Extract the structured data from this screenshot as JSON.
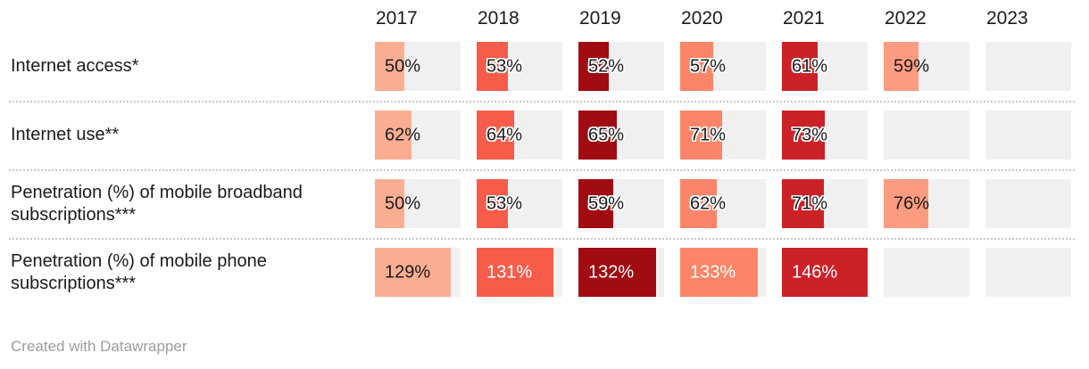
{
  "header": {
    "columns": [
      "2017",
      "2018",
      "2019",
      "2020",
      "2021",
      "2022",
      "2023"
    ]
  },
  "rows": [
    {
      "label": "Internet access*",
      "cells": [
        {
          "text": "50%",
          "value": 50,
          "fill_pct": 34.2,
          "color": "#FBAD92",
          "style": "dark"
        },
        {
          "text": "53%",
          "value": 53,
          "fill_pct": 36.3,
          "color": "#F75C4A",
          "style": "halo"
        },
        {
          "text": "52%",
          "value": 52,
          "fill_pct": 35.6,
          "color": "#A00C11",
          "style": "halo"
        },
        {
          "text": "57%",
          "value": 57,
          "fill_pct": 39.0,
          "color": "#FB8568",
          "style": "halo"
        },
        {
          "text": "61%",
          "value": 61,
          "fill_pct": 41.8,
          "color": "#CB2227",
          "style": "halo"
        },
        {
          "text": "59%",
          "value": 59,
          "fill_pct": 40.4,
          "color": "#FB9C80",
          "style": "dark"
        },
        {
          "text": "",
          "value": null,
          "fill_pct": 0,
          "color": null,
          "style": "none"
        }
      ]
    },
    {
      "label": "Internet use**",
      "cells": [
        {
          "text": "62%",
          "value": 62,
          "fill_pct": 42.5,
          "color": "#FBAD92",
          "style": "dark"
        },
        {
          "text": "64%",
          "value": 64,
          "fill_pct": 43.8,
          "color": "#F75C4A",
          "style": "halo"
        },
        {
          "text": "65%",
          "value": 65,
          "fill_pct": 44.5,
          "color": "#A00C11",
          "style": "halo"
        },
        {
          "text": "71%",
          "value": 71,
          "fill_pct": 48.6,
          "color": "#FB8568",
          "style": "halo"
        },
        {
          "text": "73%",
          "value": 73,
          "fill_pct": 50.0,
          "color": "#CB2227",
          "style": "halo"
        },
        {
          "text": "",
          "value": null,
          "fill_pct": 0,
          "color": null,
          "style": "none"
        },
        {
          "text": "",
          "value": null,
          "fill_pct": 0,
          "color": null,
          "style": "none"
        }
      ]
    },
    {
      "label": "Penetration (%) of mobile broadband subscriptions***",
      "cells": [
        {
          "text": "50%",
          "value": 50,
          "fill_pct": 34.2,
          "color": "#FBAD92",
          "style": "dark"
        },
        {
          "text": "53%",
          "value": 53,
          "fill_pct": 36.3,
          "color": "#F75C4A",
          "style": "halo"
        },
        {
          "text": "59%",
          "value": 59,
          "fill_pct": 40.4,
          "color": "#A00C11",
          "style": "halo"
        },
        {
          "text": "62%",
          "value": 62,
          "fill_pct": 42.5,
          "color": "#FB8568",
          "style": "halo"
        },
        {
          "text": "71%",
          "value": 71,
          "fill_pct": 48.6,
          "color": "#CB2227",
          "style": "halo"
        },
        {
          "text": "76%",
          "value": 76,
          "fill_pct": 52.1,
          "color": "#FB9C80",
          "style": "dark"
        },
        {
          "text": "",
          "value": null,
          "fill_pct": 0,
          "color": null,
          "style": "none"
        }
      ]
    },
    {
      "label": "Penetration (%) of mobile phone subscriptions***",
      "cells": [
        {
          "text": "129%",
          "value": 129,
          "fill_pct": 88.4,
          "color": "#FBAD92",
          "style": "dark"
        },
        {
          "text": "131%",
          "value": 131,
          "fill_pct": 89.7,
          "color": "#F75C4A",
          "style": "light"
        },
        {
          "text": "132%",
          "value": 132,
          "fill_pct": 90.4,
          "color": "#A00C11",
          "style": "light"
        },
        {
          "text": "133%",
          "value": 133,
          "fill_pct": 91.1,
          "color": "#FB8568",
          "style": "light"
        },
        {
          "text": "146%",
          "value": 146,
          "fill_pct": 100,
          "color": "#CB2227",
          "style": "light"
        },
        {
          "text": "",
          "value": null,
          "fill_pct": 0,
          "color": null,
          "style": "none"
        },
        {
          "text": "",
          "value": null,
          "fill_pct": 0,
          "color": null,
          "style": "none"
        }
      ]
    }
  ],
  "footer": {
    "credit": "Created with Datawrapper"
  },
  "colors": {
    "empty_cell": "#F0F0F0",
    "separator": "#C9C9C9",
    "text": "#1A1A1A",
    "muted_text": "#9C9C9C",
    "halo": "#FFFFFF",
    "col_2017": "#FBAD92",
    "col_2018": "#F75C4A",
    "col_2019": "#A00C11",
    "col_2020": "#FB8568",
    "col_2021": "#CB2227",
    "col_2022": "#FB9C80"
  },
  "chart_data": {
    "type": "table",
    "title": "",
    "columns": [
      "2017",
      "2018",
      "2019",
      "2020",
      "2021",
      "2022",
      "2023"
    ],
    "series": [
      {
        "name": "Internet access*",
        "values": [
          50,
          53,
          52,
          57,
          61,
          59,
          null
        ]
      },
      {
        "name": "Internet use**",
        "values": [
          62,
          64,
          65,
          71,
          73,
          null,
          null
        ]
      },
      {
        "name": "Penetration (%) of mobile broadband subscriptions***",
        "values": [
          50,
          53,
          59,
          62,
          71,
          76,
          null
        ]
      },
      {
        "name": "Penetration (%) of mobile phone subscriptions***",
        "values": [
          129,
          131,
          132,
          133,
          146,
          null,
          null
        ]
      }
    ],
    "unit": "%",
    "bar_scale_max": 146,
    "legend_position": "none",
    "grid": false,
    "annotations": [
      "Created with Datawrapper"
    ]
  }
}
